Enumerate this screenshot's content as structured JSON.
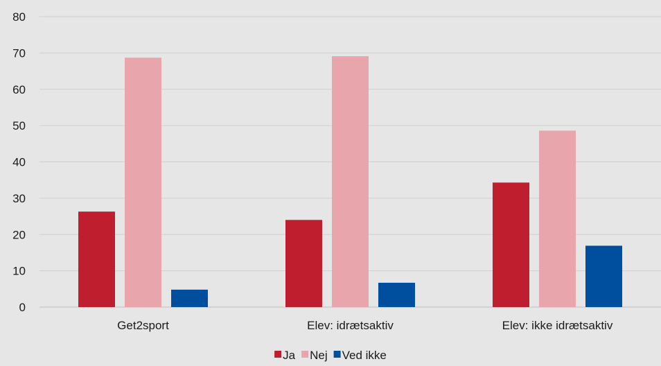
{
  "chart_data": {
    "type": "bar",
    "title": "",
    "xlabel": "",
    "ylabel": "",
    "categories": [
      "Get2sport",
      "Elev: idrætsaktiv",
      "Elev: ikke idrætsaktiv"
    ],
    "series": [
      {
        "name": "Ja",
        "color": "#be1e2d",
        "values": [
          26.3,
          24.0,
          34.3
        ]
      },
      {
        "name": "Nej",
        "color": "#e8a5ab",
        "values": [
          68.7,
          69.1,
          48.6
        ]
      },
      {
        "name": "Ved ikke",
        "color": "#004f9f",
        "values": [
          4.8,
          6.7,
          16.9
        ]
      }
    ],
    "ylim": [
      0,
      80
    ],
    "yticks": [
      0,
      10,
      20,
      30,
      40,
      50,
      60,
      70,
      80
    ],
    "ytick_labels": [
      "0",
      "10",
      "20",
      "30",
      "40",
      "50",
      "60",
      "70",
      "80"
    ],
    "grid": true,
    "legend_position": "bottom-center"
  }
}
